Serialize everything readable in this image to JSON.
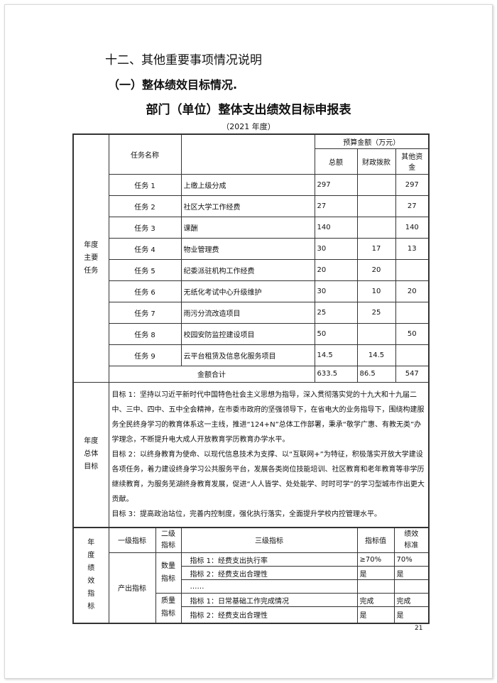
{
  "heading": "十二、其他重要事项情况说明",
  "subheading": "（一）整体绩效目标情况.",
  "table_title": "部门（单位）整体支出绩效目标申报表",
  "year": "（2021 年度）",
  "tasks_section": {
    "row_label": "年度\n主要\n任务",
    "task_name_header": "任务名称",
    "budget_header": "预算金额（万元）",
    "total_header": "总额",
    "fiscal_header": "财政拨款",
    "other_header": "其他资金",
    "rows": [
      {
        "task": "任务 1",
        "name": "上缴上级分成",
        "total": "297",
        "fiscal": "",
        "other": "297"
      },
      {
        "task": "任务 2",
        "name": "社区大学工作经费",
        "total": "27",
        "fiscal": "",
        "other": "27"
      },
      {
        "task": "任务 3",
        "name": "课酬",
        "total": "140",
        "fiscal": "",
        "other": "140"
      },
      {
        "task": "任务 4",
        "name": "物业管理费",
        "total": "30",
        "fiscal": "17",
        "other": "13"
      },
      {
        "task": "任务 5",
        "name": "纪委派驻机构工作经费",
        "total": "20",
        "fiscal": "20",
        "other": ""
      },
      {
        "task": "任务 6",
        "name": "无纸化考试中心升级维护",
        "total": "30",
        "fiscal": "10",
        "other": "20"
      },
      {
        "task": "任务 7",
        "name": "雨污分流改造项目",
        "total": "25",
        "fiscal": "25",
        "other": ""
      },
      {
        "task": "任务 8",
        "name": "校园安防监控建设项目",
        "total": "50",
        "fiscal": "",
        "other": "50"
      },
      {
        "task": "任务 9",
        "name": "云平台租赁及信息化服务项目",
        "total": "14.5",
        "fiscal": "14.5",
        "other": ""
      }
    ],
    "sum_label": "金额合计",
    "sum_total": "633.5",
    "sum_fiscal": "86.5",
    "sum_other": "547"
  },
  "goals_section": {
    "row_label": "年度\n总体\n目标",
    "goals": [
      "目标 1：坚持以习近平新时代中国特色社会主义思想为指导，深入贯彻落实党的十九大和十九届二中、三中、四中、五中全会精神，在市委市政府的坚强领导下，在省电大的业务指导下，围绕构建服务全民终身学习的教育体系这一主线，推进“124+N”总体工作部署，秉承“敬学广惠、有教无类”办学理念，不断提升电大成人开放教育学历教育办学水平。",
      "目标 2：以终身教育为使命、以现代信息技术为支撑、以“互联网+”为特征，积极落实开放大学建设各项任务，着力建设终身学习公共服务平台，发展各类岗位技能培训、社区教育和老年教育等非学历继续教育，为服务芜湖终身教育发展，促进“人人皆学、处处能学、时时可学”的学习型城市作出更大贡献。",
      "目标 3：提高政治站位，完善内控制度，强化执行落实，全面提升学校内控管理水平。"
    ]
  },
  "indicators_section": {
    "row_label": "年\n度\n绩\n效\n指\n标",
    "level1_header": "一级指标",
    "level2_header": "二级\n指标",
    "level3_header": "三级指标",
    "value_header": "指标值",
    "standard_header": "绩效\n标准",
    "level1": "产出指标",
    "quantity": "数量\n指标",
    "quality": "质量\n指标",
    "quantity_rows": [
      {
        "name": "指标 1：经费支出执行率",
        "value": "≥70%",
        "standard": "70%"
      },
      {
        "name": "指标 2：经费支出合理性",
        "value": "是",
        "standard": "是"
      },
      {
        "name": "……",
        "value": "",
        "standard": ""
      }
    ],
    "quality_rows": [
      {
        "name": "指标 1：日常基础工作完成情况",
        "value": "完成",
        "standard": "完成"
      },
      {
        "name": "指标 2：经费支出合理性",
        "value": "是",
        "standard": "是"
      }
    ]
  },
  "page_number": "21"
}
